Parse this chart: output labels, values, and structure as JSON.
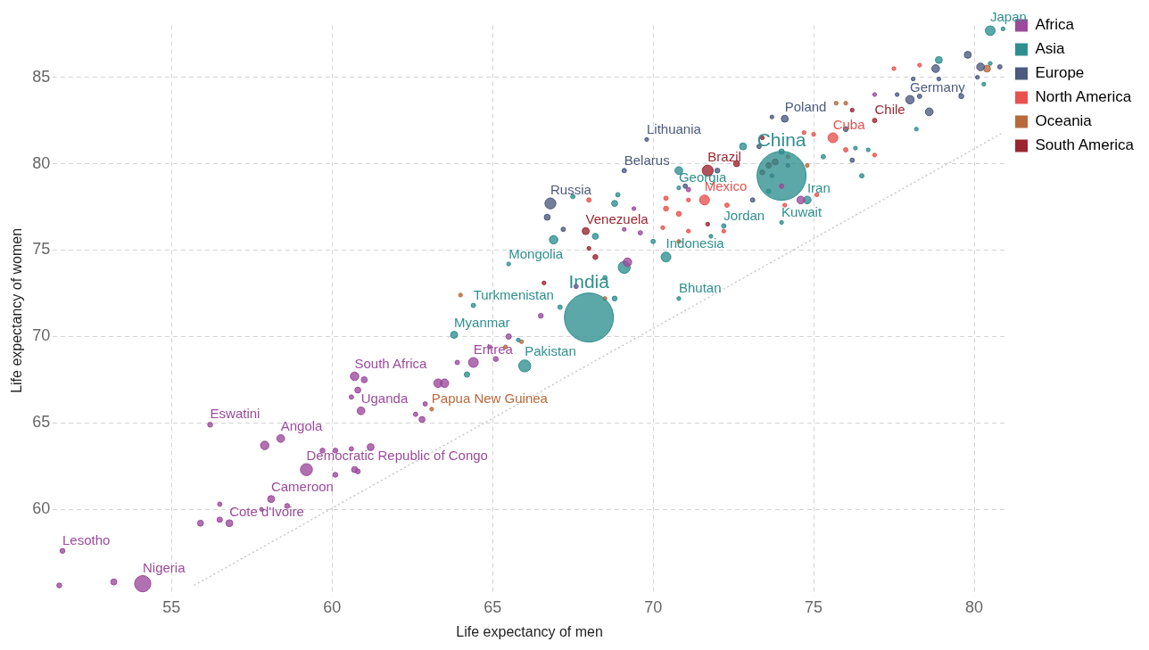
{
  "chart_data": {
    "type": "bubble",
    "xlabel": "Life expectancy of men",
    "ylabel": "Life expectancy of women",
    "xlim": [
      51.3,
      81.0
    ],
    "ylim": [
      55,
      88
    ],
    "xticks": [
      55,
      60,
      65,
      70,
      75,
      80
    ],
    "yticks": [
      60,
      65,
      70,
      75,
      80,
      85
    ],
    "grid": true,
    "legend": "top right",
    "series": [
      {
        "name": "Africa",
        "color": "#9b4a9c",
        "x": [
          51.5,
          51.6,
          53.2,
          54.1,
          56.2,
          57.9,
          58.4,
          59.7,
          60.1,
          60.6,
          61.2,
          59.2,
          60.1,
          60.7,
          60.8,
          58.1,
          56.5,
          58.6,
          57.8,
          55.9,
          56.5,
          56.8,
          60.7,
          61.0,
          60.8,
          60.6,
          60.9,
          66.5,
          65.5,
          64.9,
          64.4,
          65.1,
          63.9,
          63.3,
          63.5,
          62.9,
          62.6,
          62.8,
          69.4,
          69.6,
          69.1,
          67.6,
          69.2,
          71.1,
          74.0,
          74.6,
          76.9
        ],
        "values": [
          55.6,
          57.6,
          55.8,
          55.7,
          64.9,
          63.7,
          64.1,
          63.4,
          63.4,
          63.5,
          63.6,
          62.3,
          62.0,
          62.3,
          62.2,
          60.6,
          60.3,
          60.2,
          60.0,
          59.2,
          59.4,
          59.2,
          67.7,
          67.5,
          66.9,
          66.5,
          65.7,
          71.2,
          70.0,
          69.4,
          68.5,
          68.7,
          68.5,
          67.3,
          67.3,
          66.1,
          65.5,
          65.2,
          77.4,
          76.0,
          76.2,
          72.9,
          74.3,
          78.5,
          78.7,
          77.9,
          84.0
        ],
        "sizes": [
          0.01,
          0.01,
          0.015,
          0.11,
          0.01,
          0.03,
          0.025,
          0.01,
          0.01,
          0.008,
          0.02,
          0.06,
          0.01,
          0.015,
          0.01,
          0.02,
          0.008,
          0.01,
          0.006,
          0.015,
          0.012,
          0.02,
          0.03,
          0.015,
          0.015,
          0.008,
          0.025,
          0.01,
          0.012,
          0.006,
          0.04,
          0.01,
          0.008,
          0.03,
          0.03,
          0.008,
          0.008,
          0.015,
          0.006,
          0.008,
          0.006,
          0.008,
          0.03,
          0.008,
          0.008,
          0.025,
          0.006
        ]
      },
      {
        "name": "Asia",
        "color": "#2f8f8f",
        "x": [
          80.5,
          80.9,
          78.9,
          80.5,
          80.3,
          78.2,
          76.5,
          76.3,
          76.7,
          75.3,
          74.0,
          74.0,
          72.8,
          74.0,
          72.2,
          71.8,
          74.8,
          73.6,
          70.8,
          70.8,
          68.9,
          68.8,
          67.5,
          68.2,
          66.9,
          65.5,
          70.0,
          70.4,
          69.1,
          68.5,
          68.0,
          68.8,
          67.1,
          70.8,
          64.4,
          63.8,
          65.8,
          66.0,
          64.2
        ],
        "values": [
          87.7,
          87.8,
          86.0,
          85.8,
          84.6,
          82.0,
          79.3,
          80.9,
          80.8,
          80.4,
          79.3,
          80.7,
          81.0,
          76.6,
          76.4,
          75.8,
          77.9,
          78.4,
          79.6,
          78.6,
          78.2,
          77.7,
          78.1,
          75.8,
          75.6,
          74.2,
          75.5,
          74.6,
          74.0,
          73.4,
          71.1,
          72.2,
          71.7,
          72.2,
          71.8,
          70.1,
          69.8,
          68.3,
          67.8
        ],
        "sizes": [
          0.04,
          0.006,
          0.02,
          0.006,
          0.006,
          0.006,
          0.008,
          0.006,
          0.006,
          0.008,
          1,
          0.012,
          0.02,
          0.006,
          0.008,
          0.006,
          0.025,
          0.008,
          0.025,
          0.006,
          0.008,
          0.015,
          0.008,
          0.015,
          0.03,
          0.006,
          0.008,
          0.04,
          0.06,
          0.008,
          1,
          0.01,
          0.008,
          0.006,
          0.008,
          0.02,
          0.006,
          0.06,
          0.012
        ]
      },
      {
        "name": "Europe",
        "color": "#4b5a7e",
        "x": [
          66.8,
          66.7,
          67.2,
          69.1,
          69.8,
          71.0,
          74.1,
          73.7,
          73.3,
          72.0,
          74.2,
          73.7,
          73.1,
          76.2,
          76.0,
          78.6,
          78.8,
          79.8,
          80.2,
          80.8,
          78.0,
          78.3,
          77.6,
          80.1,
          78.1,
          79.6,
          78.9
        ],
        "values": [
          77.7,
          76.9,
          76.2,
          79.6,
          81.4,
          78.7,
          82.6,
          82.7,
          81.0,
          79.6,
          79.9,
          79.3,
          77.9,
          80.2,
          82.0,
          83.0,
          85.5,
          86.3,
          85.6,
          85.6,
          83.7,
          83.9,
          84.0,
          85.0,
          84.9,
          83.9,
          84.9
        ],
        "sizes": [
          0.05,
          0.015,
          0.008,
          0.008,
          0.006,
          0.008,
          0.02,
          0.006,
          0.008,
          0.01,
          0.006,
          0.006,
          0.008,
          0.008,
          0.01,
          0.025,
          0.025,
          0.02,
          0.025,
          0.008,
          0.03,
          0.008,
          0.006,
          0.006,
          0.006,
          0.01,
          0.006
        ]
      },
      {
        "name": "North America",
        "color": "#e8514d",
        "x": [
          75.6,
          71.6,
          76.0,
          76.9,
          72.3,
          72.2,
          74.7,
          75.0,
          74.1,
          75.1,
          68.0,
          70.4,
          70.4,
          70.8,
          71.1,
          70.3,
          71.1,
          77.5,
          78.3
        ],
        "values": [
          81.5,
          77.9,
          80.8,
          80.5,
          77.6,
          76.1,
          81.8,
          81.7,
          77.6,
          78.2,
          77.9,
          78.0,
          77.4,
          77.1,
          77.9,
          76.3,
          76.1,
          85.5,
          85.7
        ],
        "sizes": [
          0.04,
          0.04,
          0.008,
          0.006,
          0.008,
          0.006,
          0.006,
          0.006,
          0.006,
          0.006,
          0.008,
          0.008,
          0.01,
          0.01,
          0.006,
          0.006,
          0.006,
          0.006,
          0.006
        ]
      },
      {
        "name": "Oceania",
        "color": "#b86a3c",
        "x": [
          63.1,
          65.4,
          65.9,
          64.0,
          70.8,
          68.5,
          74.8,
          74.2,
          75.7,
          76.0,
          80.4
        ],
        "values": [
          65.8,
          69.4,
          69.7,
          72.4,
          75.5,
          72.2,
          79.9,
          80.4,
          83.5,
          83.5,
          85.5
        ],
        "sizes": [
          0.006,
          0.006,
          0.006,
          0.006,
          0.006,
          0.006,
          0.006,
          0.006,
          0.006,
          0.006,
          0.02
        ]
      },
      {
        "name": "South America",
        "color": "#9a2530",
        "x": [
          71.7,
          72.6,
          73.4,
          73.4,
          73.6,
          73.8,
          71.7,
          76.2,
          76.9,
          67.9,
          68.0,
          68.2,
          66.6
        ],
        "values": [
          79.6,
          80.0,
          81.5,
          79.5,
          79.9,
          80.1,
          76.5,
          83.1,
          82.5,
          76.1,
          75.1,
          74.6,
          73.1
        ],
        "sizes": [
          0.05,
          0.015,
          0.006,
          0.01,
          0.012,
          0.015,
          0.006,
          0.006,
          0.008,
          0.02,
          0.006,
          0.01,
          0.006
        ]
      },
      {
        "type": "line",
        "color": "#c8c8c8",
        "line_style": "dotted",
        "x": [
          55.7,
          80.9
        ],
        "values": [
          55.6,
          81.8
        ]
      }
    ],
    "annotations": [
      {
        "text": "Lesotho",
        "x": 51.6,
        "y": 57.6
      },
      {
        "text": "Nigeria",
        "x": 54.1,
        "y": 55.7
      },
      {
        "text": "Eswatini",
        "x": 56.2,
        "y": 64.9
      },
      {
        "text": "Angola",
        "x": 58.4,
        "y": 64.1
      },
      {
        "text": "Democratic Republic of Congo",
        "x": 59.2,
        "y": 62.3
      },
      {
        "text": "Cameroon",
        "x": 58.1,
        "y": 60.6
      },
      {
        "text": "Cote d'Ivoire",
        "x": 56.8,
        "y": 59.2
      },
      {
        "text": "South Africa",
        "x": 60.7,
        "y": 67.7
      },
      {
        "text": "Uganda",
        "x": 60.9,
        "y": 65.7
      },
      {
        "text": "Eritrea",
        "x": 64.4,
        "y": 68.5
      },
      {
        "text": "Papua New Guinea",
        "x": 63.1,
        "y": 65.8
      },
      {
        "text": "Pakistan",
        "x": 66.0,
        "y": 68.3
      },
      {
        "text": "Myanmar",
        "x": 63.8,
        "y": 70.1
      },
      {
        "text": "Turkmenistan",
        "x": 64.4,
        "y": 71.8
      },
      {
        "text": "India",
        "x": 68.0,
        "y": 71.1
      },
      {
        "text": "Mongolia",
        "x": 65.5,
        "y": 74.2
      },
      {
        "text": "Indonesia",
        "x": 70.4,
        "y": 74.6
      },
      {
        "text": "Bhutan",
        "x": 70.8,
        "y": 72.2
      },
      {
        "text": "Venezuela",
        "x": 67.9,
        "y": 76.1
      },
      {
        "text": "Russia",
        "x": 66.8,
        "y": 77.7
      },
      {
        "text": "Georgia",
        "x": 70.8,
        "y": 78.6
      },
      {
        "text": "Belarus",
        "x": 69.1,
        "y": 79.6
      },
      {
        "text": "Lithuania",
        "x": 69.8,
        "y": 81.4
      },
      {
        "text": "Brazil",
        "x": 71.7,
        "y": 79.6
      },
      {
        "text": "Mexico",
        "x": 71.6,
        "y": 77.9
      },
      {
        "text": "Jordan",
        "x": 72.2,
        "y": 76.4
      },
      {
        "text": "Kuwait",
        "x": 74.0,
        "y": 76.6
      },
      {
        "text": "Iran",
        "x": 74.8,
        "y": 77.9
      },
      {
        "text": "China",
        "x": 74.0,
        "y": 79.3
      },
      {
        "text": "Cuba",
        "x": 75.6,
        "y": 81.5
      },
      {
        "text": "Chile",
        "x": 76.9,
        "y": 82.5
      },
      {
        "text": "Poland",
        "x": 74.1,
        "y": 82.6
      },
      {
        "text": "Germany",
        "x": 78.0,
        "y": 83.7
      },
      {
        "text": "Japan",
        "x": 80.5,
        "y": 87.7
      }
    ]
  }
}
